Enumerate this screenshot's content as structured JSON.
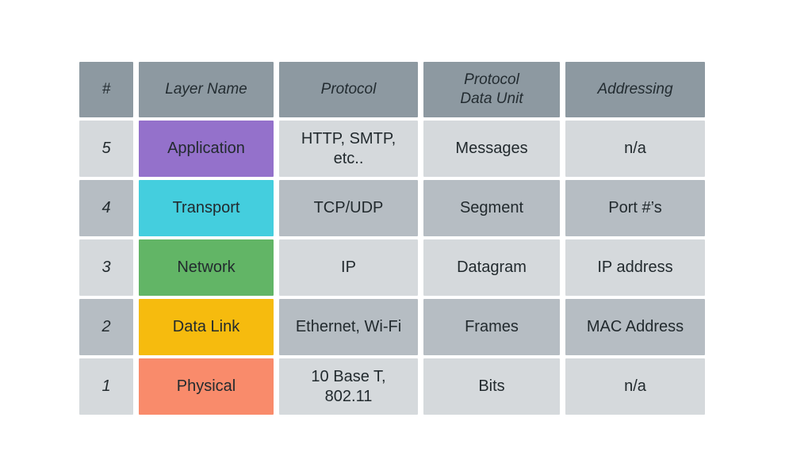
{
  "chart_data": {
    "type": "table",
    "columns": [
      "#",
      "Layer Name",
      "Protocol",
      "Protocol Data Unit",
      "Addressing"
    ],
    "rows": [
      [
        "5",
        "Application",
        "HTTP, SMTP, etc..",
        "Messages",
        "n/a"
      ],
      [
        "4",
        "Transport",
        "TCP/UDP",
        "Segment",
        "Port #’s"
      ],
      [
        "3",
        "Network",
        "IP",
        "Datagram",
        "IP address"
      ],
      [
        "2",
        "Data Link",
        "Ethernet, Wi-Fi",
        "Frames",
        "MAC Address"
      ],
      [
        "1",
        "Physical",
        "10 Base T, 802.11",
        "Bits",
        "n/a"
      ]
    ],
    "layout_hints": {
      "header_style": "italic",
      "row_striping": "alternating light/dark gray",
      "layer_name_column_color_coded": true
    }
  },
  "table": {
    "headers": [
      "#",
      "Layer Name",
      "Protocol",
      "Protocol\nData Unit",
      "Addressing"
    ],
    "rows": [
      {
        "num": "5",
        "layer": "Application",
        "layer_color": "#9471cb",
        "protocol": "HTTP, SMTP,\netc..",
        "pdu": "Messages",
        "addressing": "n/a"
      },
      {
        "num": "4",
        "layer": "Transport",
        "layer_color": "#44cede",
        "protocol": "TCP/UDP",
        "pdu": "Segment",
        "addressing": "Port #’s"
      },
      {
        "num": "3",
        "layer": "Network",
        "layer_color": "#62b566",
        "protocol": "IP",
        "pdu": "Datagram",
        "addressing": "IP address"
      },
      {
        "num": "2",
        "layer": "Data Link",
        "layer_color": "#f6bb0e",
        "protocol": "Ethernet, Wi-Fi",
        "pdu": "Frames",
        "addressing": "MAC Address"
      },
      {
        "num": "1",
        "layer": "Physical",
        "layer_color": "#f98b6b",
        "protocol": "10 Base T,\n802.11",
        "pdu": "Bits",
        "addressing": "n/a"
      }
    ]
  },
  "colors": {
    "page_background": "#ffffff",
    "header_background": "#8d99a1",
    "row_light_background": "#d5d9dc",
    "row_dark_background": "#b6bdc3",
    "text": "#222a2e",
    "layer_application": "#9471cb",
    "layer_transport": "#44cede",
    "layer_network": "#62b566",
    "layer_data_link": "#f6bb0e",
    "layer_physical": "#f98b6b"
  }
}
